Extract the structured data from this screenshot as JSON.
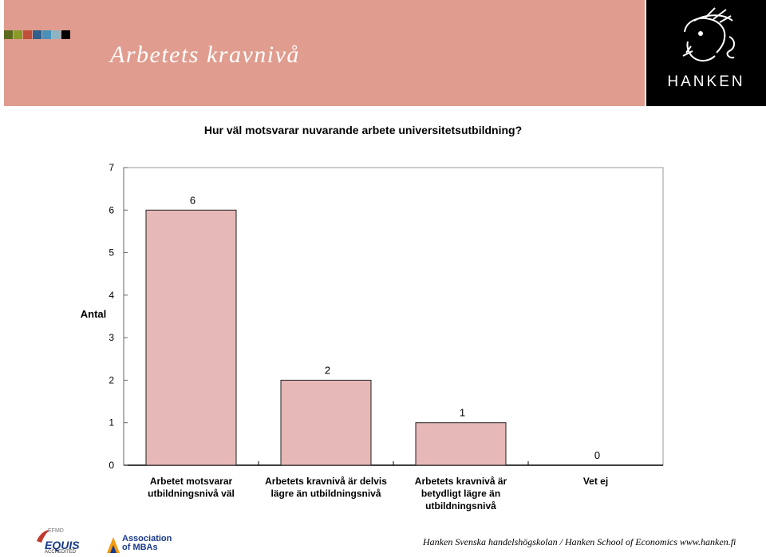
{
  "header": {
    "title": "Arbetets kravnivå",
    "accent_squares": [
      "#5a6b1f",
      "#8a9a2a",
      "#c0503a",
      "#2f5f8a",
      "#4a90b8",
      "#8fb3c0",
      "#000000"
    ],
    "background_color": "#e09c8e",
    "logo_text": "HANKEN",
    "logo_icon": "hermes-head-icon"
  },
  "chart_data": {
    "type": "bar",
    "title": "Hur väl motsvarar nuvarande arbete universitetsutbildning?",
    "ylabel": "Antal",
    "xlabel": "",
    "ylim": [
      0,
      7
    ],
    "yticks": [
      0,
      1,
      2,
      3,
      4,
      5,
      6,
      7
    ],
    "categories": [
      [
        "Arbetet motsvarar",
        "utbildningsnivå väl"
      ],
      [
        "Arbetets kravnivå är delvis",
        "lägre än utbildningsnivå"
      ],
      [
        "Arbetets kravnivå är",
        "betydligt lägre än",
        "utbildningsnivå"
      ],
      [
        "Vet ej"
      ]
    ],
    "values": [
      6,
      2,
      1,
      0
    ],
    "data_labels": [
      "6",
      "2",
      "1",
      "0"
    ],
    "bar_color": "#e6b8b7",
    "grid": false
  },
  "footer": {
    "text": "Hanken Svenska handelshögskolan / Hanken School of Economics www.hanken.fi",
    "equis_top": "EFMD",
    "equis_main": "EQUIS",
    "equis_sub": "ACCREDITED",
    "amba_line1": "Association",
    "amba_line2": "of MBAs"
  }
}
